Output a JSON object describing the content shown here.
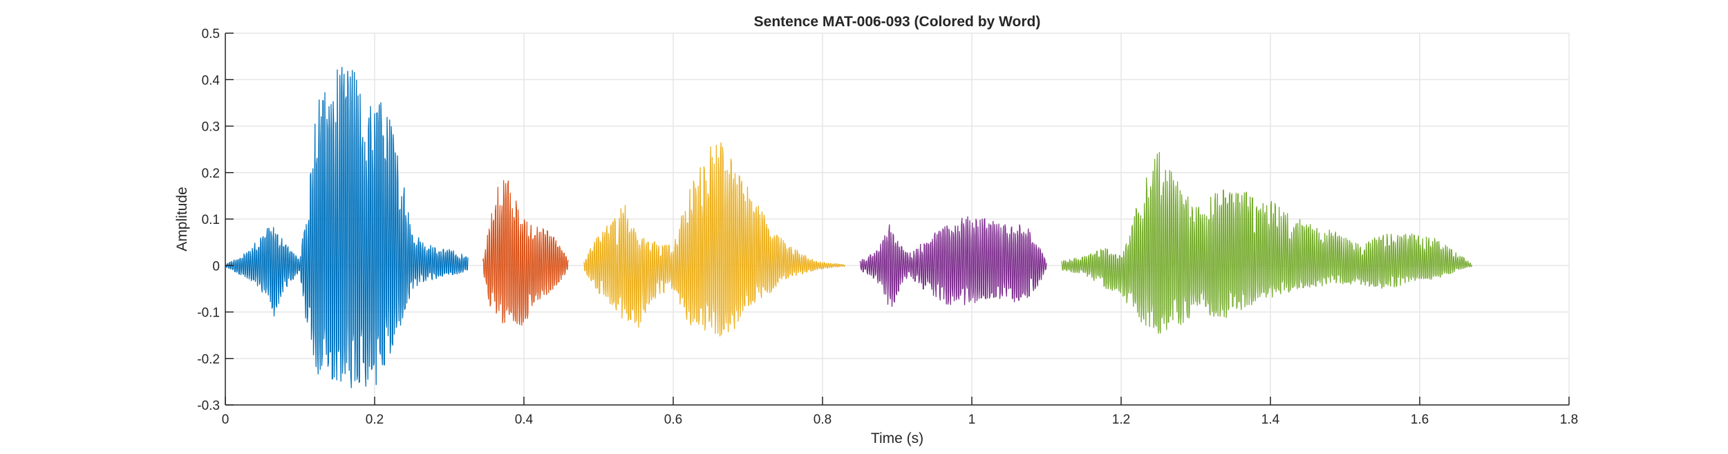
{
  "chart_data": {
    "type": "line",
    "title": "Sentence MAT-006-093 (Colored by Word)",
    "xlabel": "Time (s)",
    "ylabel": "Amplitude",
    "xlim": [
      0,
      1.8
    ],
    "ylim": [
      -0.3,
      0.5
    ],
    "x_ticks": [
      0,
      0.2,
      0.4,
      0.6,
      0.8,
      1,
      1.2,
      1.4,
      1.6,
      1.8
    ],
    "x_tick_labels": [
      "0",
      "0.2",
      "0.4",
      "0.6",
      "0.8",
      "1",
      "1.2",
      "1.4",
      "1.6",
      "1.8"
    ],
    "y_ticks": [
      -0.3,
      -0.2,
      -0.1,
      0,
      0.1,
      0.2,
      0.3,
      0.4,
      0.5
    ],
    "y_tick_labels": [
      "-0.3",
      "-0.2",
      "-0.1",
      "0",
      "0.1",
      "0.2",
      "0.3",
      "0.4",
      "0.5"
    ],
    "grid": true,
    "legend": "none",
    "series": [
      {
        "color": "#0072BD",
        "x": [
          0.0,
          0.03,
          0.055,
          0.065,
          0.08,
          0.1,
          0.11,
          0.125,
          0.14,
          0.16,
          0.17,
          0.19,
          0.2,
          0.215,
          0.23,
          0.25,
          0.26,
          0.28,
          0.3,
          0.31,
          0.325
        ],
        "upper": [
          0.002,
          0.03,
          0.08,
          0.09,
          0.05,
          0.015,
          0.15,
          0.4,
          0.42,
          0.43,
          0.44,
          0.38,
          0.36,
          0.35,
          0.25,
          0.08,
          0.06,
          0.04,
          0.035,
          0.03,
          0.02
        ],
        "lower": [
          -0.002,
          -0.03,
          -0.07,
          -0.11,
          -0.05,
          -0.015,
          -0.15,
          -0.24,
          -0.25,
          -0.255,
          -0.27,
          -0.27,
          -0.26,
          -0.24,
          -0.15,
          -0.06,
          -0.04,
          -0.03,
          -0.02,
          -0.02,
          -0.01
        ]
      },
      {
        "color": "#D95319",
        "x": [
          0.345,
          0.355,
          0.365,
          0.375,
          0.385,
          0.395,
          0.41,
          0.425,
          0.44,
          0.46
        ],
        "upper": [
          0.01,
          0.1,
          0.18,
          0.195,
          0.18,
          0.11,
          0.09,
          0.08,
          0.07,
          0.01
        ],
        "lower": [
          -0.01,
          -0.1,
          -0.115,
          -0.13,
          -0.125,
          -0.14,
          -0.1,
          -0.07,
          -0.05,
          -0.01
        ]
      },
      {
        "color": "#EDB120",
        "x": [
          0.48,
          0.5,
          0.52,
          0.535,
          0.55,
          0.57,
          0.59,
          0.6,
          0.62,
          0.64,
          0.65,
          0.67,
          0.69,
          0.71,
          0.73,
          0.75,
          0.77,
          0.79,
          0.81,
          0.83
        ],
        "upper": [
          0.01,
          0.07,
          0.1,
          0.15,
          0.07,
          0.06,
          0.05,
          0.04,
          0.16,
          0.23,
          0.285,
          0.26,
          0.19,
          0.15,
          0.09,
          0.05,
          0.03,
          0.01,
          0.005,
          0.002
        ],
        "lower": [
          -0.01,
          -0.06,
          -0.09,
          -0.13,
          -0.15,
          -0.08,
          -0.06,
          -0.05,
          -0.13,
          -0.14,
          -0.155,
          -0.15,
          -0.13,
          -0.08,
          -0.06,
          -0.03,
          -0.02,
          -0.01,
          -0.005,
          -0.002
        ]
      },
      {
        "color": "#7E2F8E",
        "x": [
          0.85,
          0.87,
          0.88,
          0.89,
          0.9,
          0.91,
          0.92,
          0.94,
          0.96,
          0.98,
          1.0,
          1.02,
          1.04,
          1.06,
          1.08,
          1.1
        ],
        "upper": [
          0.01,
          0.03,
          0.06,
          0.09,
          0.06,
          0.03,
          0.03,
          0.06,
          0.08,
          0.1,
          0.11,
          0.105,
          0.09,
          0.09,
          0.08,
          0.01
        ],
        "lower": [
          -0.01,
          -0.03,
          -0.05,
          -0.1,
          -0.07,
          -0.03,
          -0.03,
          -0.06,
          -0.08,
          -0.09,
          -0.08,
          -0.08,
          -0.07,
          -0.08,
          -0.07,
          -0.01
        ]
      },
      {
        "color": "#77AC30",
        "x": [
          1.12,
          1.15,
          1.18,
          1.2,
          1.21,
          1.23,
          1.25,
          1.26,
          1.28,
          1.3,
          1.32,
          1.34,
          1.36,
          1.38,
          1.4,
          1.42,
          1.44,
          1.46,
          1.48,
          1.5,
          1.52,
          1.54,
          1.56,
          1.58,
          1.6,
          1.62,
          1.64,
          1.65,
          1.67
        ],
        "upper": [
          0.01,
          0.02,
          0.04,
          0.02,
          0.06,
          0.19,
          0.25,
          0.22,
          0.18,
          0.13,
          0.15,
          0.17,
          0.165,
          0.16,
          0.14,
          0.12,
          0.1,
          0.09,
          0.08,
          0.06,
          0.05,
          0.06,
          0.07,
          0.07,
          0.065,
          0.06,
          0.04,
          0.03,
          0.002
        ],
        "lower": [
          -0.01,
          -0.02,
          -0.05,
          -0.06,
          -0.09,
          -0.13,
          -0.15,
          -0.14,
          -0.13,
          -0.1,
          -0.11,
          -0.12,
          -0.1,
          -0.08,
          -0.07,
          -0.06,
          -0.05,
          -0.05,
          -0.04,
          -0.04,
          -0.04,
          -0.05,
          -0.05,
          -0.04,
          -0.03,
          -0.03,
          -0.02,
          -0.01,
          -0.002
        ]
      }
    ]
  }
}
